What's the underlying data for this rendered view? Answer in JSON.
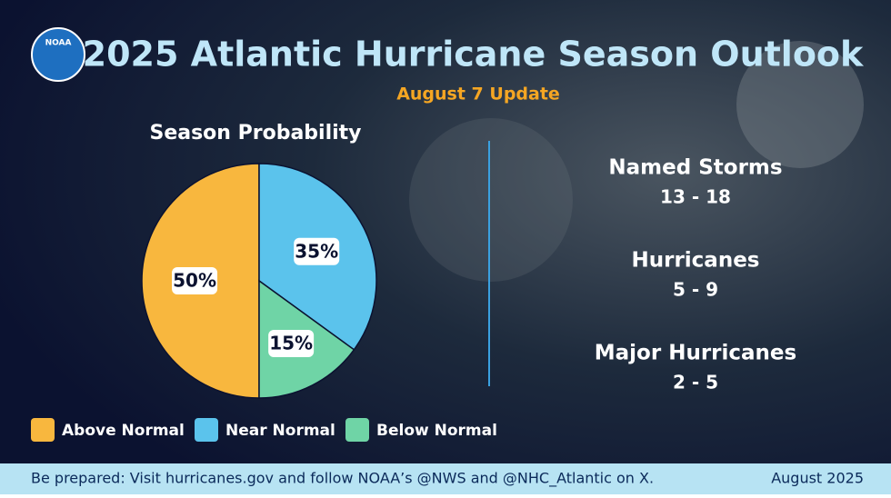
{
  "logo": "NOAA",
  "header": {
    "title": "2025 Atlantic Hurricane Season Outlook",
    "subtitle": "August 7 Update"
  },
  "chart_data": {
    "type": "pie",
    "title": "Season Probability",
    "categories": [
      "Above Normal",
      "Near Normal",
      "Below Normal"
    ],
    "values": [
      50,
      35,
      15
    ],
    "value_labels": [
      "50%",
      "35%",
      "15%"
    ],
    "colors": [
      "#f8b73e",
      "#5bc3ec",
      "#6fd4a6"
    ]
  },
  "stats": [
    {
      "label": "Named Storms",
      "value": "13 - 18"
    },
    {
      "label": "Hurricanes",
      "value": "5 - 9"
    },
    {
      "label": "Major Hurricanes",
      "value": "2 - 5"
    }
  ],
  "footer": {
    "text": "Be prepared: Visit hurricanes.gov and follow NOAA’s @NWS and @NHC_Atlantic on X.",
    "date": "August 2025"
  }
}
